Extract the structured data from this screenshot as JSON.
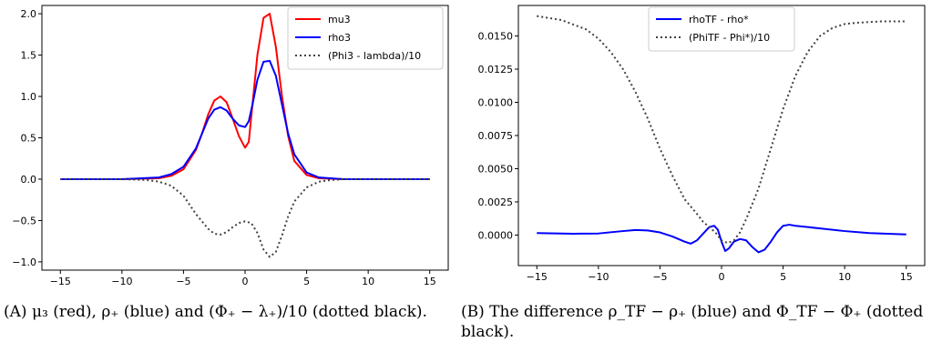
{
  "captions": [
    {
      "prefix": "(A) ",
      "text": "μ₃ (red), ρ₊ (blue) and (Φ₊ − λ₊)/10 (dotted black)."
    },
    {
      "prefix": "(B) ",
      "text": "The difference ρ_TF − ρ₊ (blue) and Φ_TF − Φ₊ (dotted black)."
    }
  ],
  "chart_data": [
    {
      "type": "line",
      "title": "",
      "xlabel": "",
      "ylabel": "",
      "xlim": [
        -16.5,
        16.5
      ],
      "ylim": [
        -1.1,
        2.1
      ],
      "xticks": [
        -15,
        -10,
        -5,
        0,
        5,
        10,
        15
      ],
      "xtick_labels": [
        "−15",
        "−10",
        "−5",
        "0",
        "5",
        "10",
        "15"
      ],
      "yticks": [
        -1.0,
        -0.5,
        0.0,
        0.5,
        1.0,
        1.5,
        2.0
      ],
      "ytick_labels": [
        "−1.0",
        "−0.5",
        "0.0",
        "0.5",
        "1.0",
        "1.5",
        "2.0"
      ],
      "grid": false,
      "legend_position": "top-right",
      "series": [
        {
          "name": "mu3",
          "color": "#ff0000",
          "style": "solid",
          "x": [
            -15,
            -10,
            -7,
            -6,
            -5,
            -4,
            -3.5,
            -3,
            -2.5,
            -2,
            -1.5,
            -1,
            -0.5,
            0,
            0.3,
            0.6,
            1,
            1.5,
            2,
            2.5,
            3,
            3.5,
            4,
            5,
            6,
            8,
            10,
            15
          ],
          "y": [
            0,
            0,
            0.01,
            0.04,
            0.12,
            0.35,
            0.55,
            0.78,
            0.95,
            1.0,
            0.93,
            0.73,
            0.52,
            0.38,
            0.45,
            0.9,
            1.5,
            1.95,
            2.0,
            1.6,
            1.0,
            0.52,
            0.22,
            0.05,
            0.01,
            0,
            0,
            0
          ]
        },
        {
          "name": "rho3",
          "color": "#0000ff",
          "style": "solid",
          "x": [
            -15,
            -10,
            -7,
            -6,
            -5,
            -4,
            -3.5,
            -3,
            -2.5,
            -2,
            -1.5,
            -1,
            -0.5,
            0,
            0.3,
            0.6,
            1,
            1.5,
            2,
            2.5,
            3,
            3.5,
            4,
            5,
            6,
            8,
            10,
            15
          ],
          "y": [
            0,
            0,
            0.02,
            0.06,
            0.15,
            0.37,
            0.55,
            0.73,
            0.84,
            0.87,
            0.83,
            0.73,
            0.65,
            0.63,
            0.7,
            0.9,
            1.2,
            1.42,
            1.43,
            1.25,
            0.9,
            0.55,
            0.3,
            0.08,
            0.02,
            0,
            0,
            0
          ]
        },
        {
          "name": "(Phi3 - lambda)/10",
          "color": "#404040",
          "style": "dotted",
          "x": [
            -15,
            -10,
            -8,
            -7,
            -6,
            -5,
            -4,
            -3,
            -2.5,
            -2,
            -1.5,
            -1,
            -0.5,
            0,
            0.5,
            1,
            1.5,
            2,
            2.5,
            3,
            3.5,
            4,
            5,
            6,
            7,
            8,
            10,
            15
          ],
          "y": [
            0,
            0,
            -0.01,
            -0.03,
            -0.08,
            -0.2,
            -0.42,
            -0.6,
            -0.66,
            -0.67,
            -0.64,
            -0.58,
            -0.53,
            -0.51,
            -0.53,
            -0.65,
            -0.85,
            -0.94,
            -0.88,
            -0.68,
            -0.45,
            -0.27,
            -0.1,
            -0.03,
            -0.01,
            0,
            0,
            0
          ]
        }
      ]
    },
    {
      "type": "line",
      "title": "",
      "xlabel": "",
      "ylabel": "",
      "xlim": [
        -16.5,
        16.5
      ],
      "ylim": [
        -0.0023,
        0.0173
      ],
      "xticks": [
        -15,
        -10,
        -5,
        0,
        5,
        10,
        15
      ],
      "xtick_labels": [
        "−15",
        "−10",
        "−5",
        "0",
        "5",
        "10",
        "15"
      ],
      "yticks": [
        0.0,
        0.0025,
        0.005,
        0.0075,
        0.01,
        0.0125,
        0.015
      ],
      "ytick_labels": [
        "0.0000",
        "0.0025",
        "0.0050",
        "0.0075",
        "0.0100",
        "0.0125",
        "0.0150"
      ],
      "grid": false,
      "legend_position": "top-center",
      "series": [
        {
          "name": "rhoTF - rho*",
          "color": "#0000ff",
          "style": "solid",
          "x": [
            -15,
            -12,
            -10,
            -8,
            -7,
            -6,
            -5,
            -4,
            -3,
            -2.5,
            -2,
            -1.5,
            -1,
            -0.6,
            -0.3,
            0,
            0.3,
            0.6,
            1,
            1.5,
            2,
            2.5,
            3,
            3.5,
            4,
            4.5,
            5,
            5.5,
            6,
            8,
            10,
            12,
            15
          ],
          "y": [
            0.00015,
            0.0001,
            0.00012,
            0.0003,
            0.00038,
            0.00035,
            0.0002,
            -0.0001,
            -0.0005,
            -0.00065,
            -0.0004,
            0.0001,
            0.0006,
            0.0007,
            0.0004,
            -0.0005,
            -0.0012,
            -0.001,
            -0.0005,
            -0.0003,
            -0.0004,
            -0.0009,
            -0.0013,
            -0.0011,
            -0.0005,
            0.0002,
            0.0007,
            0.00078,
            0.0007,
            0.0005,
            0.0003,
            0.00015,
            5e-05
          ]
        },
        {
          "name": "(PhiTF - Phi*)/10",
          "color": "#404040",
          "style": "dotted",
          "x": [
            -15,
            -13,
            -11,
            -10,
            -9,
            -8,
            -7,
            -6,
            -5,
            -4,
            -3,
            -2,
            -1.5,
            -1,
            -0.5,
            0,
            0.5,
            1,
            1.5,
            2,
            3,
            4,
            5,
            6,
            7,
            8,
            9,
            10,
            11,
            13,
            15
          ],
          "y": [
            0.0165,
            0.0162,
            0.0155,
            0.0148,
            0.0138,
            0.0125,
            0.0108,
            0.0088,
            0.0065,
            0.0045,
            0.0027,
            0.0016,
            0.001,
            0.0006,
            0.0002,
            -0.0004,
            -0.0006,
            -0.0004,
            0.0002,
            0.0012,
            0.0035,
            0.0065,
            0.0095,
            0.012,
            0.0138,
            0.015,
            0.0156,
            0.0159,
            0.016,
            0.0161,
            0.0161
          ]
        }
      ]
    }
  ]
}
